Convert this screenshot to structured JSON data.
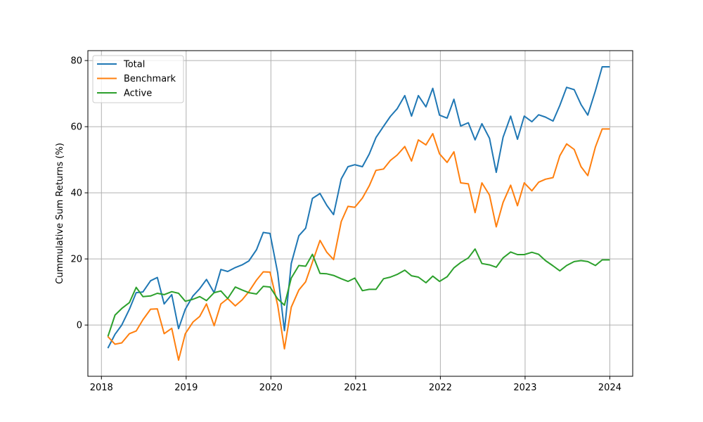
{
  "chart_data": {
    "type": "line",
    "title": "",
    "xlabel": "",
    "ylabel": "Cummulative Sum Returns (%)",
    "xlim": [
      2017.84,
      2024.27
    ],
    "ylim": [
      -15.5,
      83
    ],
    "x_ticks": [
      2018,
      2019,
      2020,
      2021,
      2022,
      2023,
      2024
    ],
    "x_tick_labels": [
      "2018",
      "2019",
      "2020",
      "2021",
      "2022",
      "2023",
      "2024"
    ],
    "y_ticks": [
      0,
      20,
      40,
      60,
      80
    ],
    "y_tick_labels": [
      "0",
      "20",
      "40",
      "60",
      "80"
    ],
    "grid": true,
    "legend_position": "top-left",
    "x": [
      2018.08,
      2018.16,
      2018.24,
      2018.33,
      2018.41,
      2018.49,
      2018.58,
      2018.66,
      2018.74,
      2018.83,
      2018.91,
      2018.99,
      2019.08,
      2019.16,
      2019.24,
      2019.33,
      2019.41,
      2019.49,
      2019.58,
      2019.66,
      2019.74,
      2019.83,
      2019.91,
      2019.99,
      2020.08,
      2020.16,
      2020.24,
      2020.33,
      2020.41,
      2020.49,
      2020.58,
      2020.66,
      2020.74,
      2020.83,
      2020.91,
      2020.99,
      2021.08,
      2021.16,
      2021.24,
      2021.33,
      2021.41,
      2021.49,
      2021.58,
      2021.66,
      2021.74,
      2021.83,
      2021.91,
      2021.99,
      2022.08,
      2022.16,
      2022.24,
      2022.33,
      2022.41,
      2022.49,
      2022.58,
      2022.66,
      2022.74,
      2022.83,
      2022.91,
      2022.99,
      2023.08,
      2023.16,
      2023.24,
      2023.33,
      2023.41,
      2023.49,
      2023.58,
      2023.66,
      2023.74,
      2023.83,
      2023.91,
      2023.99
    ],
    "series": [
      {
        "name": "Total",
        "color": "#1f77b4",
        "values": [
          -6.8,
          -2.8,
          0.0,
          4.8,
          9.8,
          10.0,
          13.4,
          14.4,
          6.4,
          9.2,
          -1.1,
          4.8,
          8.8,
          11.0,
          13.8,
          9.8,
          16.8,
          16.2,
          17.4,
          18.2,
          19.4,
          22.8,
          28.0,
          27.7,
          15.8,
          -1.7,
          18.6,
          27.0,
          29.3,
          38.3,
          39.8,
          36.2,
          33.4,
          44.2,
          47.9,
          48.5,
          47.9,
          51.7,
          56.7,
          60.1,
          63.1,
          65.4,
          69.4,
          63.2,
          69.4,
          66.0,
          71.6,
          63.5,
          62.6,
          68.3,
          60.2,
          61.2,
          56.0,
          60.9,
          56.5,
          46.2,
          56.8,
          63.2,
          56.2,
          63.2,
          61.5,
          63.6,
          62.9,
          61.7,
          66.4,
          71.9,
          71.2,
          66.7,
          63.5,
          70.9,
          78.1,
          78.1
        ]
      },
      {
        "name": "Benchmark",
        "color": "#ff7f0e",
        "values": [
          -3.6,
          -5.8,
          -5.4,
          -2.6,
          -1.8,
          1.6,
          4.8,
          4.9,
          -2.6,
          -1.0,
          -10.6,
          -2.6,
          0.9,
          2.6,
          6.4,
          -0.2,
          6.4,
          8.0,
          5.8,
          7.6,
          10.1,
          13.6,
          16.1,
          16.0,
          6.0,
          -7.2,
          5.4,
          10.6,
          13.1,
          19.0,
          25.6,
          22.0,
          19.8,
          31.3,
          35.9,
          35.6,
          38.4,
          42.1,
          46.8,
          47.2,
          49.8,
          51.4,
          54.0,
          49.6,
          56.0,
          54.5,
          57.9,
          51.8,
          49.2,
          52.4,
          43.0,
          42.7,
          34.0,
          43.0,
          39.3,
          29.7,
          37.1,
          42.3,
          36.1,
          43.0,
          40.6,
          43.2,
          44.1,
          44.6,
          51.2,
          54.8,
          53.1,
          47.9,
          45.2,
          53.9,
          59.3,
          59.3
        ]
      },
      {
        "name": "Active",
        "color": "#2ca02c",
        "values": [
          -3.2,
          3.0,
          5.0,
          6.8,
          11.4,
          8.6,
          8.8,
          9.6,
          9.2,
          10.1,
          9.6,
          7.2,
          7.8,
          8.6,
          7.4,
          9.8,
          10.3,
          8.0,
          11.5,
          10.6,
          9.8,
          9.4,
          11.7,
          11.5,
          7.9,
          6.0,
          14.2,
          18.0,
          17.8,
          21.4,
          15.6,
          15.5,
          15.0,
          14.0,
          13.2,
          14.2,
          10.4,
          10.8,
          10.8,
          14.0,
          14.5,
          15.3,
          16.6,
          14.9,
          14.5,
          12.8,
          14.8,
          13.2,
          14.6,
          17.3,
          18.9,
          20.3,
          23.0,
          18.6,
          18.2,
          17.5,
          20.3,
          22.1,
          21.3,
          21.3,
          22.0,
          21.4,
          19.5,
          17.9,
          16.4,
          18.0,
          19.2,
          19.5,
          19.2,
          18.0,
          19.7,
          19.7
        ]
      }
    ]
  }
}
